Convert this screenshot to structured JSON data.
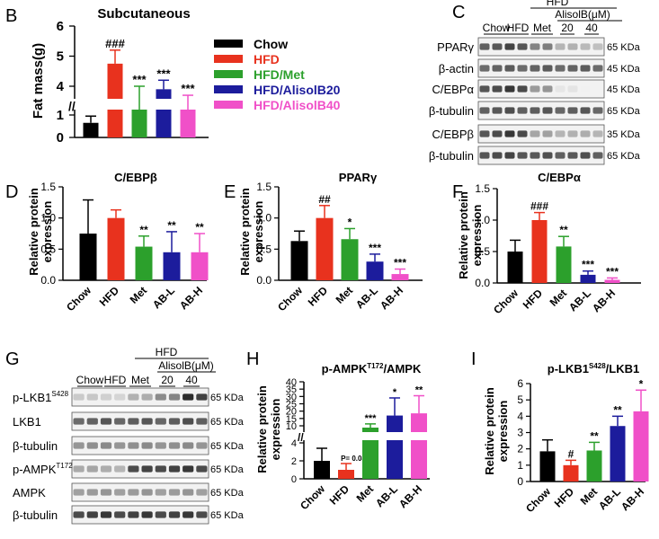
{
  "figure": {
    "colors": {
      "chow": "#000000",
      "hfd": "#e8321e",
      "met": "#2ca02c",
      "abl": "#1c1c9c",
      "abh": "#f050c8"
    },
    "legend": [
      "Chow",
      "HFD",
      "HFD/Met",
      "HFD/AlisolB20",
      "HFD/AlisolB40"
    ],
    "axis_break_symbol": "//"
  },
  "panel_letters": {
    "B": "B",
    "C": "C",
    "D": "D",
    "E": "E",
    "F": "F",
    "G": "G",
    "H": "H",
    "I": "I"
  },
  "chart_data": [
    {
      "panel": "B",
      "type": "bar",
      "title": "Subcutaneous",
      "ylabel": "Fat mass(g)",
      "categories": [
        "Chow",
        "HFD",
        "HFD/Met",
        "HFD/AlisolB20",
        "HFD/AlisolB40"
      ],
      "values": [
        0.65,
        4.75,
        3.1,
        3.9,
        3.2
      ],
      "errors": [
        0.3,
        0.45,
        0.9,
        0.3,
        0.5
      ],
      "annotations": [
        "",
        "###",
        "***",
        "***",
        "***"
      ],
      "yticks": [
        "0",
        "1",
        "4",
        "5",
        "6"
      ],
      "axis_break": true,
      "ylim": [
        0,
        6
      ]
    },
    {
      "panel": "D",
      "type": "bar",
      "title": "C/EBPβ",
      "ylabel": "Relative protein expression",
      "categories": [
        "Chow",
        "HFD",
        "Met",
        "AB-L",
        "AB-H"
      ],
      "values": [
        0.75,
        1.0,
        0.54,
        0.45,
        0.45
      ],
      "errors": [
        0.54,
        0.13,
        0.17,
        0.33,
        0.3
      ],
      "annotations": [
        "",
        "",
        "**",
        "**",
        "**"
      ],
      "yticks": [
        "0.0",
        "0.5",
        "1.0",
        "1.5"
      ],
      "ylim": [
        0,
        1.5
      ]
    },
    {
      "panel": "E",
      "type": "bar",
      "title": "PPARγ",
      "ylabel": "Relative protein expression",
      "categories": [
        "Chow",
        "HFD",
        "Met",
        "AB-L",
        "AB-H"
      ],
      "values": [
        0.63,
        1.0,
        0.66,
        0.3,
        0.1
      ],
      "errors": [
        0.16,
        0.2,
        0.17,
        0.12,
        0.08
      ],
      "annotations": [
        "",
        "##",
        "*",
        "***",
        "***"
      ],
      "yticks": [
        "0.0",
        "0.5",
        "1.0",
        "1.5"
      ],
      "ylim": [
        0,
        1.5
      ]
    },
    {
      "panel": "F",
      "type": "bar",
      "title": "C/EBPα",
      "ylabel": "Relative protein expression",
      "categories": [
        "Chow",
        "HFD",
        "Met",
        "AB-L",
        "AB-H"
      ],
      "values": [
        0.5,
        1.0,
        0.58,
        0.13,
        0.05
      ],
      "errors": [
        0.18,
        0.12,
        0.16,
        0.06,
        0.03
      ],
      "annotations": [
        "",
        "###",
        "**",
        "***",
        "***"
      ],
      "yticks": [
        "0.0",
        "0.5",
        "1.0",
        "1.5"
      ],
      "ylim": [
        0,
        1.5
      ]
    },
    {
      "panel": "H",
      "type": "bar",
      "title_main": "p-AMPK",
      "title_sup": "T172",
      "title_rest": "/AMPK",
      "ylabel": "Relative protein expression",
      "categories": [
        "Chow",
        "HFD",
        "Met",
        "AB-L",
        "AB-H"
      ],
      "values": [
        2.0,
        1.0,
        9.0,
        17.0,
        18.5
      ],
      "errors": [
        1.4,
        0.7,
        2.3,
        12.0,
        12.0
      ],
      "annotations": [
        "",
        "P= 0.08",
        "***",
        "*",
        "**"
      ],
      "yticks_low": [
        "0",
        "2",
        "4"
      ],
      "yticks_high": [
        "10",
        "15",
        "20",
        "25",
        "30",
        "35",
        "40"
      ],
      "axis_break": true,
      "ylim": [
        0,
        40
      ]
    },
    {
      "panel": "I",
      "type": "bar",
      "title_main": "p-LKB1",
      "title_sup": "S428",
      "title_rest": "/LKB1",
      "ylabel": "Relative protein expression",
      "categories": [
        "Chow",
        "HFD",
        "Met",
        "AB-L",
        "AB-H"
      ],
      "values": [
        1.85,
        1.0,
        1.9,
        3.4,
        4.3
      ],
      "errors": [
        0.7,
        0.3,
        0.5,
        0.6,
        1.3
      ],
      "annotations": [
        "",
        "#",
        "**",
        "**",
        "*"
      ],
      "yticks": [
        "0",
        "1",
        "2",
        "3",
        "4",
        "5",
        "6"
      ],
      "ylim": [
        0,
        6
      ]
    }
  ],
  "blot_C": {
    "lanes": [
      "Chow",
      "HFD",
      "Met",
      "20",
      "40"
    ],
    "group_label": "HFD",
    "treatment_label": "AlisolB(μM)",
    "rows": [
      {
        "label": "PPARγ",
        "kda": "65 KDa",
        "intensity": [
          0.75,
          0.8,
          0.55,
          0.35,
          0.3
        ]
      },
      {
        "label": "β-actin",
        "kda": "45 KDa",
        "intensity": [
          0.7,
          0.7,
          0.7,
          0.7,
          0.7
        ]
      },
      {
        "label": "C/EBPα",
        "kda": "45 KDa",
        "intensity": [
          0.8,
          0.85,
          0.45,
          0.12,
          0.06
        ]
      },
      {
        "label": "β-tubulin",
        "kda": "65 KDa",
        "intensity": [
          0.75,
          0.75,
          0.72,
          0.72,
          0.72
        ]
      },
      {
        "label": "C/EBPβ",
        "kda": "35 KDa",
        "intensity": [
          0.8,
          0.85,
          0.4,
          0.35,
          0.35
        ]
      },
      {
        "label": "β-tubulin",
        "kda": "65 KDa",
        "intensity": [
          0.8,
          0.8,
          0.75,
          0.75,
          0.75
        ]
      }
    ]
  },
  "blot_G": {
    "lanes": [
      "Chow",
      "HFD",
      "Met",
      "20",
      "40"
    ],
    "group_label": "HFD",
    "treatment_label": "AlisolB(μM)",
    "rows": [
      {
        "label": "p-LKB1",
        "sup": "S428",
        "kda": "65 KDa",
        "intensity": [
          0.25,
          0.2,
          0.35,
          0.55,
          0.9
        ]
      },
      {
        "label": "LKB1",
        "sup": "",
        "kda": "65 KDa",
        "intensity": [
          0.7,
          0.72,
          0.72,
          0.72,
          0.75
        ]
      },
      {
        "label": "β-tubulin",
        "sup": "",
        "kda": "65 KDa",
        "intensity": [
          0.5,
          0.5,
          0.5,
          0.5,
          0.5
        ]
      },
      {
        "label": "p-AMPK",
        "sup": "T172",
        "kda": "65 KDa",
        "intensity": [
          0.4,
          0.35,
          0.8,
          0.85,
          0.85
        ]
      },
      {
        "label": "AMPK",
        "sup": "",
        "kda": "65 KDa",
        "intensity": [
          0.45,
          0.45,
          0.45,
          0.45,
          0.45
        ]
      },
      {
        "label": "β-tubulin",
        "sup": "",
        "kda": "65 KDa",
        "intensity": [
          0.85,
          0.85,
          0.85,
          0.85,
          0.85
        ]
      }
    ]
  }
}
